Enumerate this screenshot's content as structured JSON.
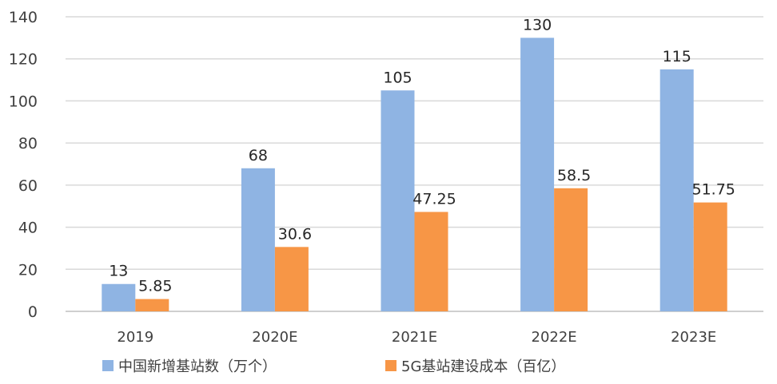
{
  "chart_data": {
    "type": "bar",
    "categories": [
      "2019",
      "2020E",
      "2021E",
      "2022E",
      "2023E"
    ],
    "series": [
      {
        "name": "中国新增基站数（万个）",
        "color": "#8FB4E3",
        "values": [
          13,
          68,
          105,
          130,
          115
        ],
        "labels": [
          "13",
          "68",
          "105",
          "130",
          "115"
        ]
      },
      {
        "name": "5G基站建设成本（百亿）",
        "color": "#F79646",
        "values": [
          5.85,
          30.6,
          47.25,
          58.5,
          51.75
        ],
        "labels": [
          "5.85",
          "30.6",
          "47.25",
          "58.5",
          "51.75"
        ]
      }
    ],
    "ylim": [
      0,
      140
    ],
    "yticks": [
      "0",
      "20",
      "40",
      "60",
      "80",
      "100",
      "120",
      "140"
    ],
    "grid": true,
    "legend_position": "bottom"
  }
}
